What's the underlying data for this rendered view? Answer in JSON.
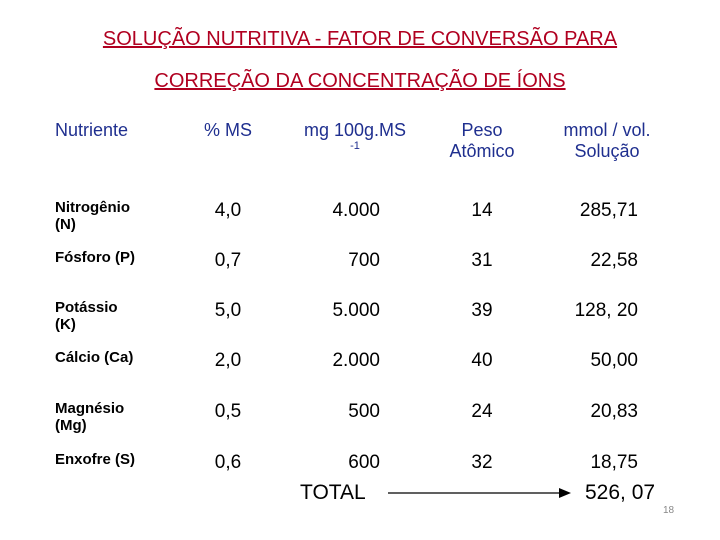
{
  "title": {
    "line1": "SOLUÇÃO NUTRITIVA - FATOR DE CONVERSÃO PARA",
    "line2": "CORREÇÃO DA CONCENTRAÇÃO DE ÍONS"
  },
  "table": {
    "header": {
      "nutrient": "Nutriente",
      "ms": "% MS",
      "mg": "mg 100g.MS",
      "mg_sup": "-1",
      "peso": "Peso\nAtômico",
      "mmol": "mmol / vol.\nSolução"
    },
    "rows": [
      [
        "Nitrogênio\n(N)",
        "4,0",
        "4.000",
        "14",
        "285,71"
      ],
      [
        "Fósforo (P)",
        "0,7",
        "700",
        "31",
        "22,58"
      ],
      [
        "Potássio\n(K)",
        "5,0",
        "5.000",
        "39",
        "128, 20"
      ],
      [
        "Cálcio (Ca)",
        "2,0",
        "2.000",
        "40",
        "50,00"
      ],
      [
        "Magnésio\n(Mg)",
        "0,5",
        "500",
        "24",
        "20,83"
      ],
      [
        "Enxofre (S)",
        "0,6",
        "600",
        "32",
        "18,75"
      ]
    ],
    "total_label": "TOTAL",
    "total_value": "526, 07"
  },
  "page_number": "18"
}
